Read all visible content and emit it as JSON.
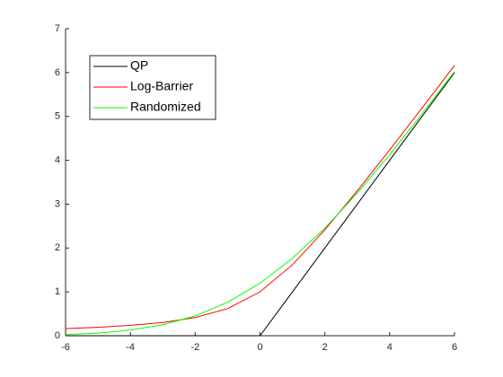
{
  "chart_data": {
    "type": "line",
    "x": [
      -6,
      -5,
      -4,
      -3,
      -2,
      -1,
      0,
      1,
      2,
      3,
      4,
      5,
      6
    ],
    "series": [
      {
        "name": "QP",
        "color": "#000000",
        "values": [
          0,
          0,
          0,
          0,
          0,
          0,
          0,
          1,
          2,
          3,
          4,
          5,
          6
        ]
      },
      {
        "name": "Log-Barrier",
        "color": "#ff0000",
        "values": [
          0.162,
          0.193,
          0.236,
          0.303,
          0.414,
          0.618,
          1,
          1.618,
          2.414,
          3.303,
          4.236,
          5.193,
          6.162
        ]
      },
      {
        "name": "Randomized",
        "color": "#00ff00",
        "values": [
          0.025,
          0.059,
          0.127,
          0.25,
          0.452,
          0.763,
          1.197,
          1.763,
          2.452,
          3.25,
          4.127,
          5.059,
          6.025
        ]
      }
    ],
    "xlim": [
      -6,
      6
    ],
    "xticks": [
      -6,
      -4,
      -2,
      0,
      2,
      4,
      6
    ],
    "ylim": [
      0,
      7
    ],
    "yticks": [
      0,
      1,
      2,
      3,
      4,
      5,
      6,
      7
    ],
    "legend": "top-left"
  }
}
